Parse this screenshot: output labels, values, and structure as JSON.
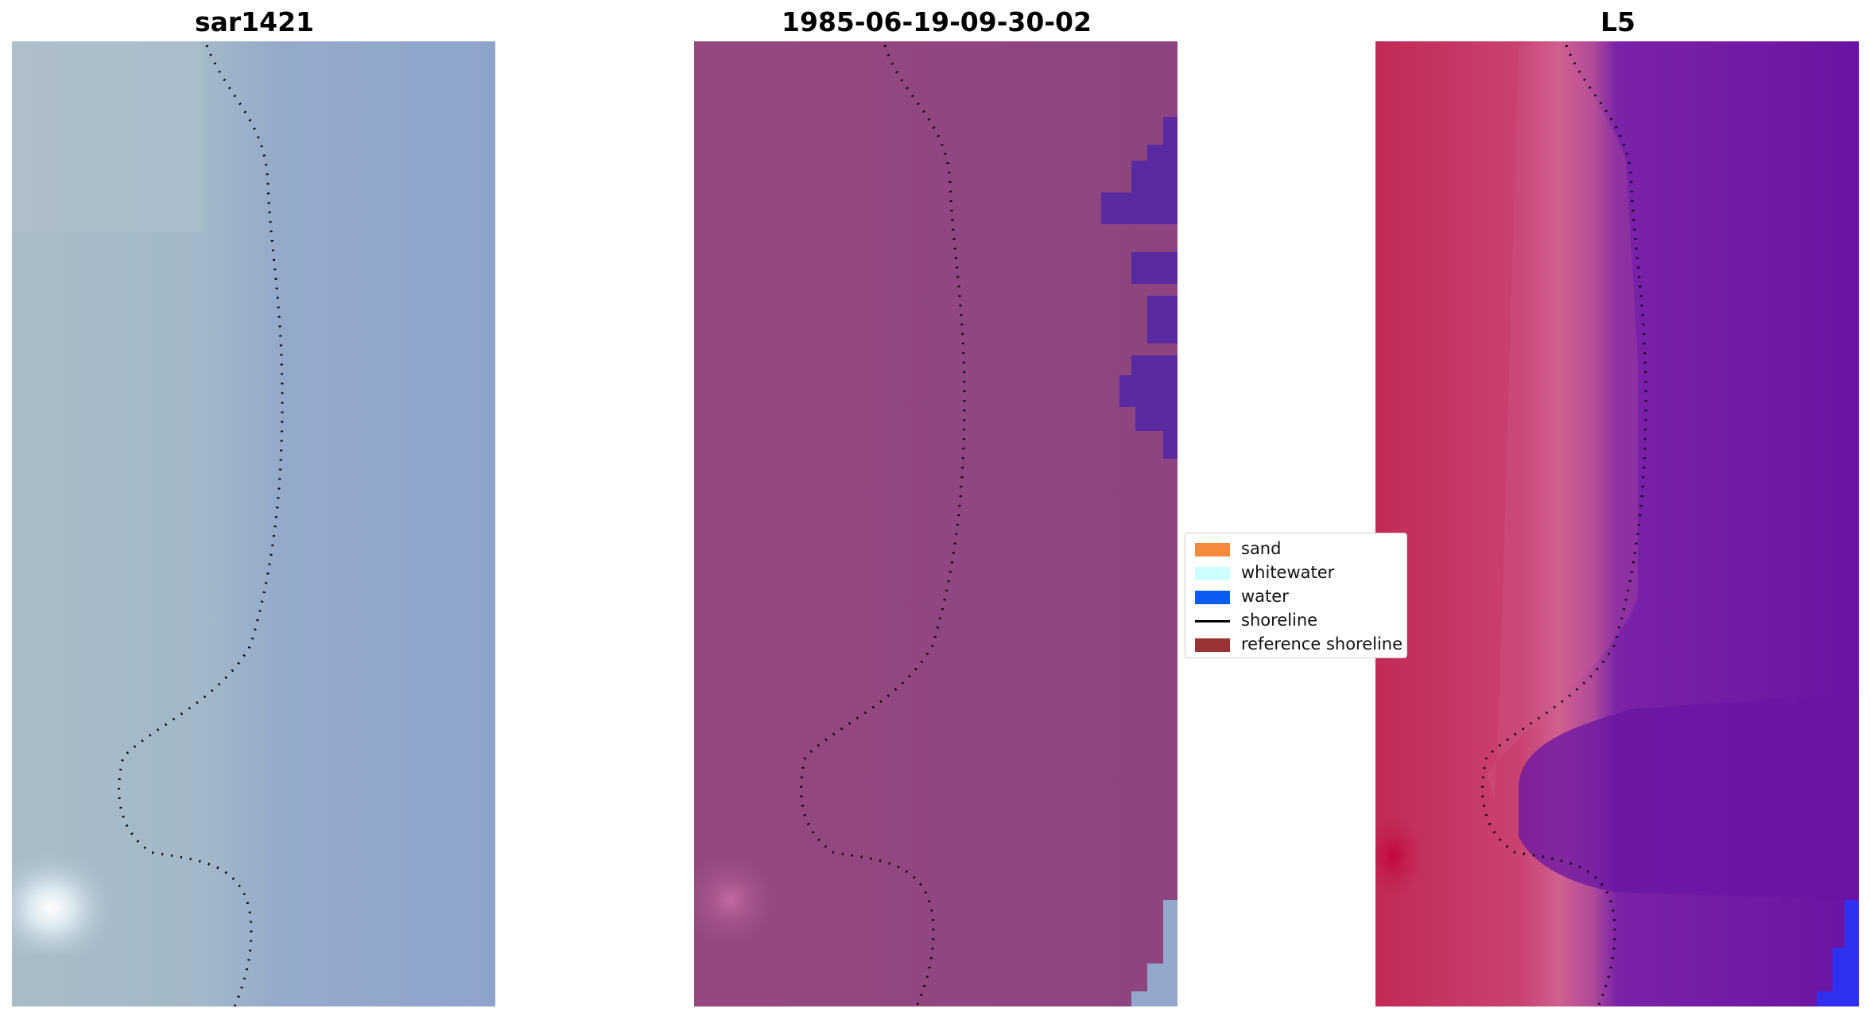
{
  "panels": [
    {
      "title": "sar1421"
    },
    {
      "title": "1985-06-19-09-30-02"
    },
    {
      "title": "L5"
    }
  ],
  "legend": {
    "items": [
      {
        "label": "sand",
        "color": "#f58a3d",
        "kind": "patch"
      },
      {
        "label": "whitewater",
        "color": "#ccffff",
        "kind": "patch"
      },
      {
        "label": "water",
        "color": "#0a5cf5",
        "kind": "patch"
      },
      {
        "label": "shoreline",
        "color": "#000000",
        "kind": "line"
      },
      {
        "label": "reference shoreline",
        "color": "#9a3333",
        "kind": "patch"
      }
    ]
  },
  "colors": {
    "rgb_background": "#93a8cc",
    "rgb_beach": "#a6bcc6",
    "class_overlay_land": "#8e4880",
    "class_overlay_water": "#5a2aa0",
    "index_land": "#c63a68",
    "index_water": "#6a14a4"
  }
}
